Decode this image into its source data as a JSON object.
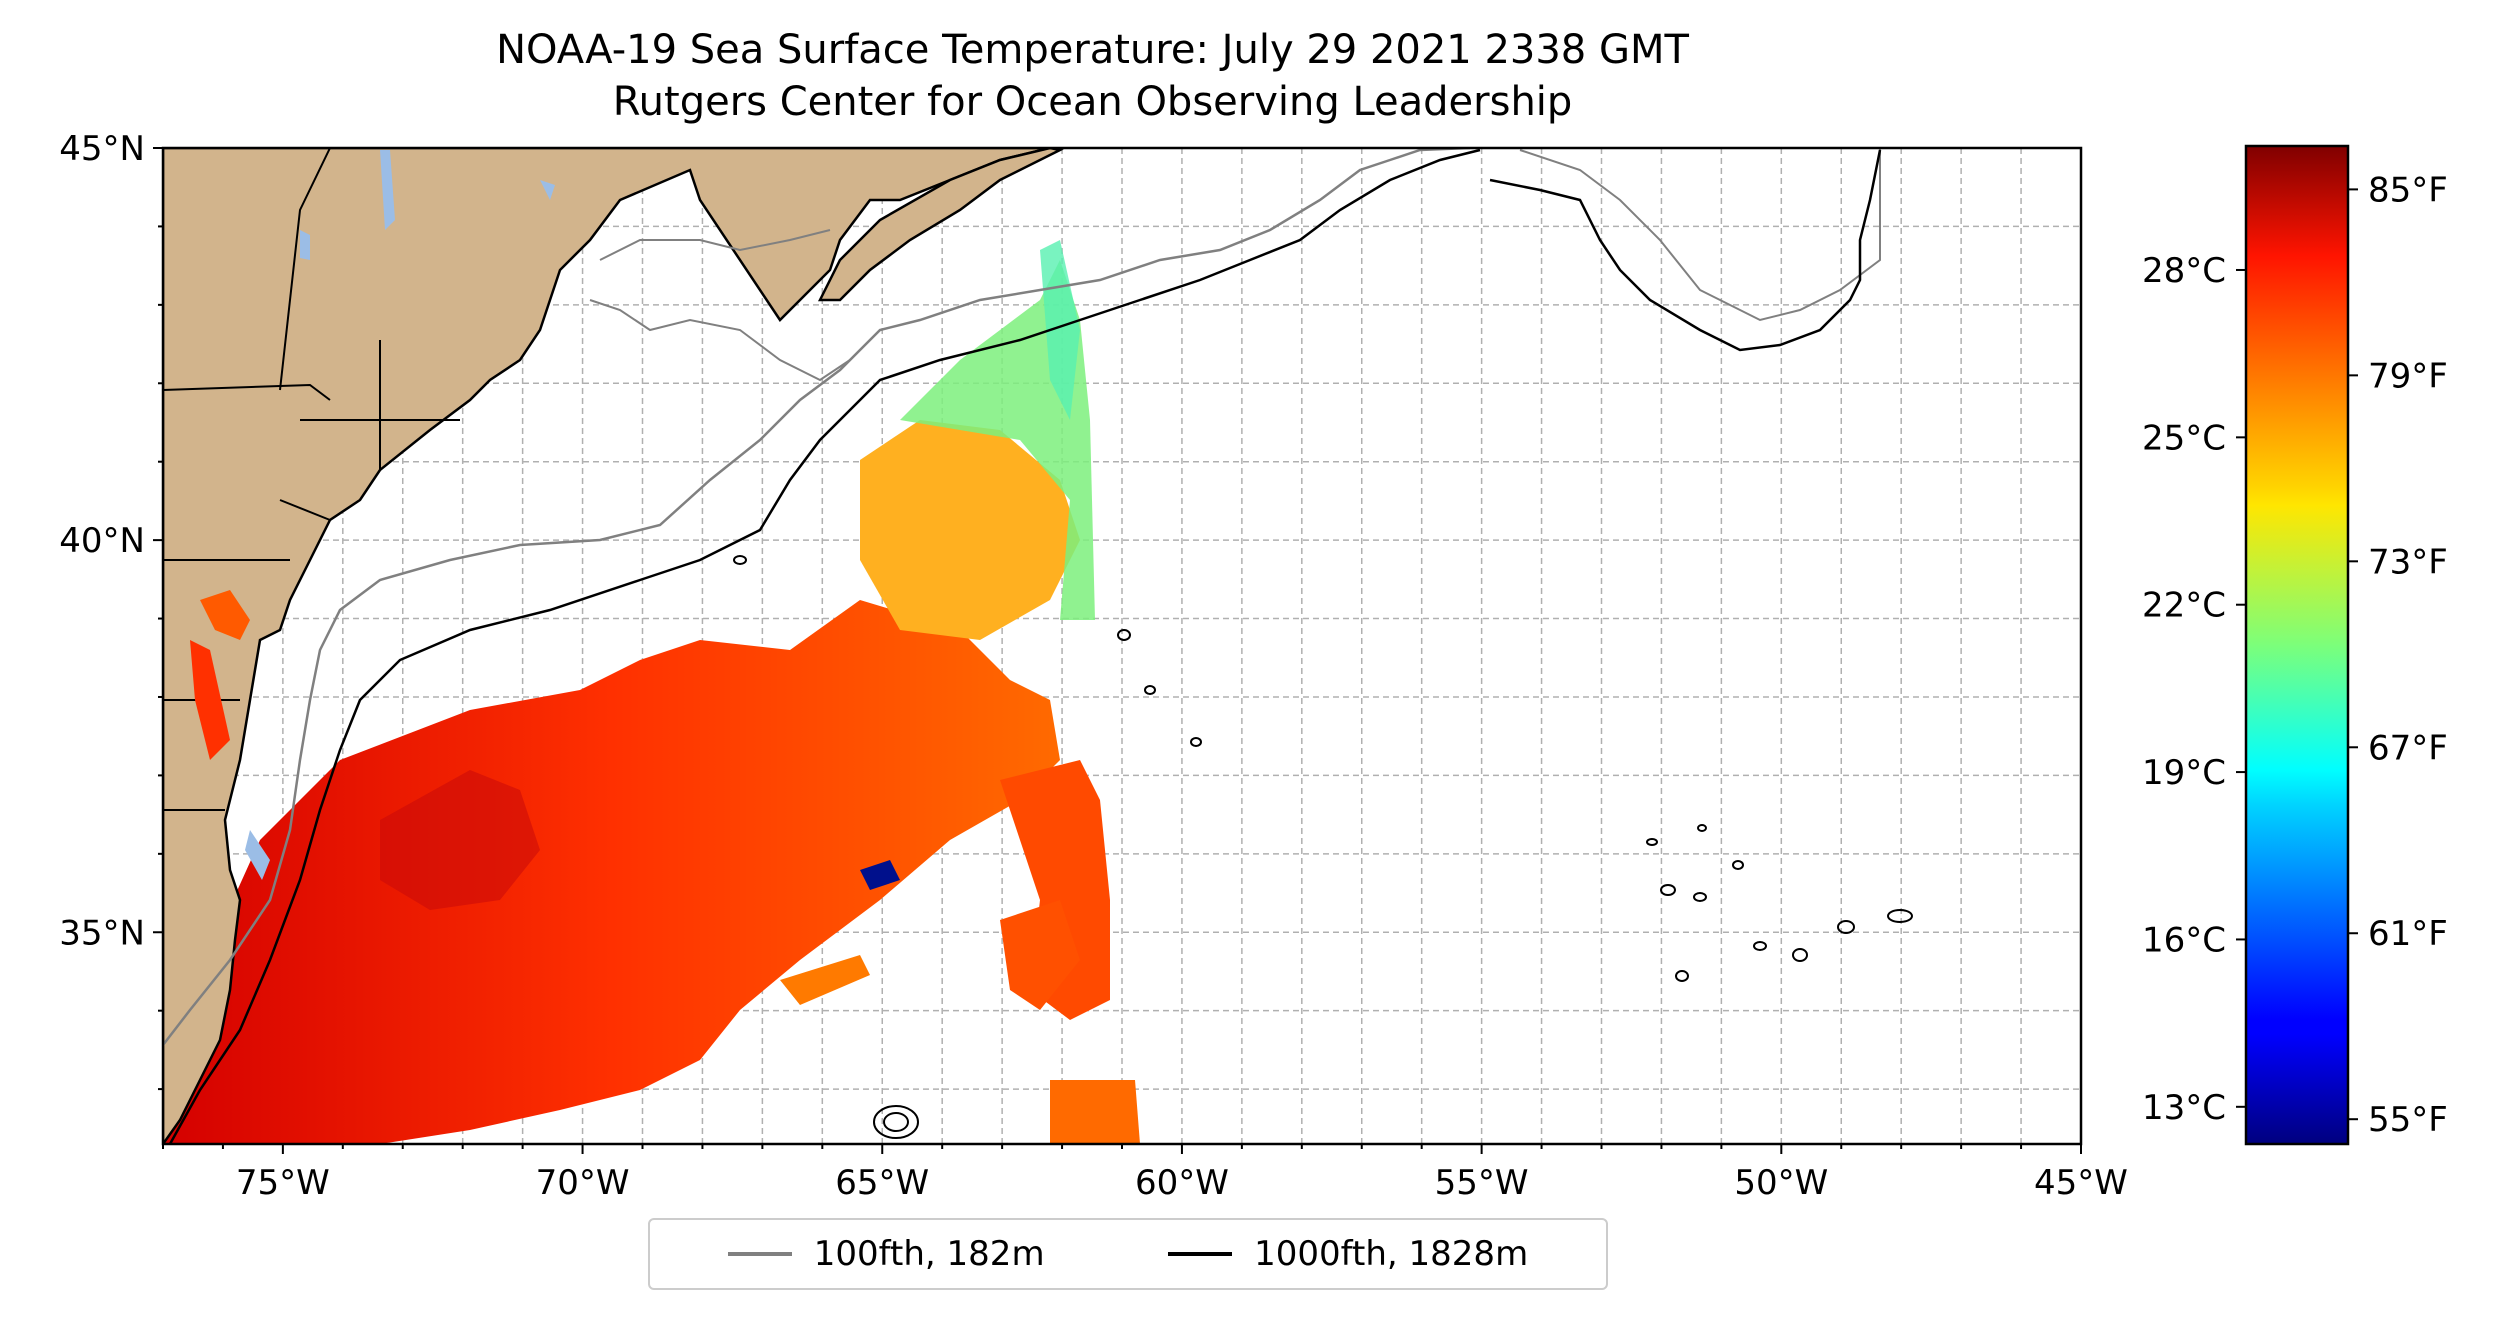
{
  "title": {
    "line1": "NOAA-19 Sea Surface Temperature: July 29 2021 2338 GMT",
    "line2": "Rutgers Center for Ocean Observing Leadership"
  },
  "map": {
    "lon_range": [
      -77,
      -45
    ],
    "lat_range": [
      32.3,
      45
    ],
    "lon_ticks": [
      {
        "value": -75,
        "label": "75°W"
      },
      {
        "value": -70,
        "label": "70°W"
      },
      {
        "value": -65,
        "label": "65°W"
      },
      {
        "value": -60,
        "label": "60°W"
      },
      {
        "value": -55,
        "label": "55°W"
      },
      {
        "value": -50,
        "label": "50°W"
      },
      {
        "value": -45,
        "label": "45°W"
      }
    ],
    "lat_ticks": [
      {
        "value": 45,
        "label": "45°N"
      },
      {
        "value": 40,
        "label": "40°N"
      },
      {
        "value": 35,
        "label": "35°N"
      }
    ],
    "grid": true,
    "colors": {
      "land": "#d2b48c",
      "lakes": "#9bbde6",
      "ocean": "#ffffff"
    }
  },
  "legend": {
    "items": [
      {
        "label": "100fth, 182m",
        "color": "#808080"
      },
      {
        "label": "1000fth, 1828m",
        "color": "#000000"
      }
    ]
  },
  "colorbar": {
    "colormap": "jet",
    "range_f": [
      54.2,
      86.4
    ],
    "celsius_ticks": [
      {
        "value": 13,
        "label": "13°C"
      },
      {
        "value": 16,
        "label": "16°C"
      },
      {
        "value": 19,
        "label": "19°C"
      },
      {
        "value": 22,
        "label": "22°C"
      },
      {
        "value": 25,
        "label": "25°C"
      },
      {
        "value": 28,
        "label": "28°C"
      }
    ],
    "fahrenheit_ticks": [
      {
        "value": 55,
        "label": "55°F"
      },
      {
        "value": 61,
        "label": "61°F"
      },
      {
        "value": 67,
        "label": "67°F"
      },
      {
        "value": 73,
        "label": "73°F"
      },
      {
        "value": 79,
        "label": "79°F"
      },
      {
        "value": 85,
        "label": "85°F"
      }
    ]
  }
}
